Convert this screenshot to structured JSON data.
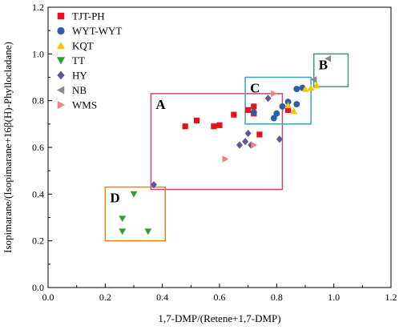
{
  "chart_data": {
    "type": "scatter",
    "xlabel": "1,7-DMP/(Retene+1,7-DMP)",
    "ylabel": "Isopimarane/(Isopimarane+16β(H)-Phyllocladane)",
    "xlim": [
      0,
      1.2
    ],
    "ylim": [
      0,
      1.2
    ],
    "x_ticks": [
      "0.0",
      "0.2",
      "0.4",
      "0.6",
      "0.8",
      "1.0",
      "1.2"
    ],
    "y_ticks": [
      "0.0",
      "0.2",
      "0.4",
      "0.6",
      "0.8",
      "1.0",
      "1.2"
    ],
    "grid": false,
    "legend_position": "top-left",
    "series": [
      {
        "name": "TJT-PH",
        "marker": "square",
        "color": "#e8101a",
        "points": [
          [
            0.48,
            0.69
          ],
          [
            0.52,
            0.715
          ],
          [
            0.58,
            0.69
          ],
          [
            0.6,
            0.695
          ],
          [
            0.65,
            0.74
          ],
          [
            0.7,
            0.76
          ],
          [
            0.72,
            0.745
          ],
          [
            0.72,
            0.775
          ],
          [
            0.74,
            0.655
          ],
          [
            0.84,
            0.76
          ]
        ]
      },
      {
        "name": "WYT-WYT",
        "marker": "circle",
        "color": "#2b5ea8",
        "points": [
          [
            0.72,
            0.75
          ],
          [
            0.79,
            0.725
          ],
          [
            0.8,
            0.745
          ],
          [
            0.82,
            0.775
          ],
          [
            0.84,
            0.795
          ],
          [
            0.87,
            0.785
          ],
          [
            0.87,
            0.85
          ],
          [
            0.89,
            0.855
          ]
        ]
      },
      {
        "name": "KQT",
        "marker": "triangle-up",
        "color": "#f5c400",
        "points": [
          [
            0.84,
            0.78
          ],
          [
            0.86,
            0.755
          ],
          [
            0.9,
            0.85
          ],
          [
            0.92,
            0.855
          ],
          [
            0.94,
            0.865
          ]
        ]
      },
      {
        "name": "TT",
        "marker": "triangle-down",
        "color": "#2aa02a",
        "points": [
          [
            0.3,
            0.4
          ],
          [
            0.26,
            0.295
          ],
          [
            0.26,
            0.24
          ],
          [
            0.35,
            0.24
          ]
        ]
      },
      {
        "name": "HY",
        "marker": "diamond",
        "color": "#5a5a9a",
        "points": [
          [
            0.37,
            0.44
          ],
          [
            0.67,
            0.61
          ],
          [
            0.69,
            0.625
          ],
          [
            0.7,
            0.66
          ],
          [
            0.71,
            0.61
          ],
          [
            0.77,
            0.81
          ],
          [
            0.81,
            0.635
          ]
        ]
      },
      {
        "name": "NB",
        "marker": "triangle-left",
        "color": "#8a8a8a",
        "points": [
          [
            0.98,
            0.98
          ],
          [
            0.93,
            0.89
          ]
        ]
      },
      {
        "name": "WMS",
        "marker": "triangle-right",
        "color": "#f48080",
        "points": [
          [
            0.62,
            0.55
          ],
          [
            0.72,
            0.61
          ],
          [
            0.79,
            0.83
          ]
        ]
      }
    ],
    "regions": [
      {
        "label": "A",
        "x": [
          0.36,
          0.82
        ],
        "y": [
          0.42,
          0.83
        ],
        "color": "#c8467a"
      },
      {
        "label": "B",
        "x": [
          0.93,
          1.05
        ],
        "y": [
          0.86,
          1.0
        ],
        "color": "#3f9a6a"
      },
      {
        "label": "C",
        "x": [
          0.69,
          0.92
        ],
        "y": [
          0.7,
          0.9
        ],
        "color": "#3aa0d0"
      },
      {
        "label": "D",
        "x": [
          0.2,
          0.41
        ],
        "y": [
          0.2,
          0.43
        ],
        "color": "#e8801a"
      }
    ]
  }
}
